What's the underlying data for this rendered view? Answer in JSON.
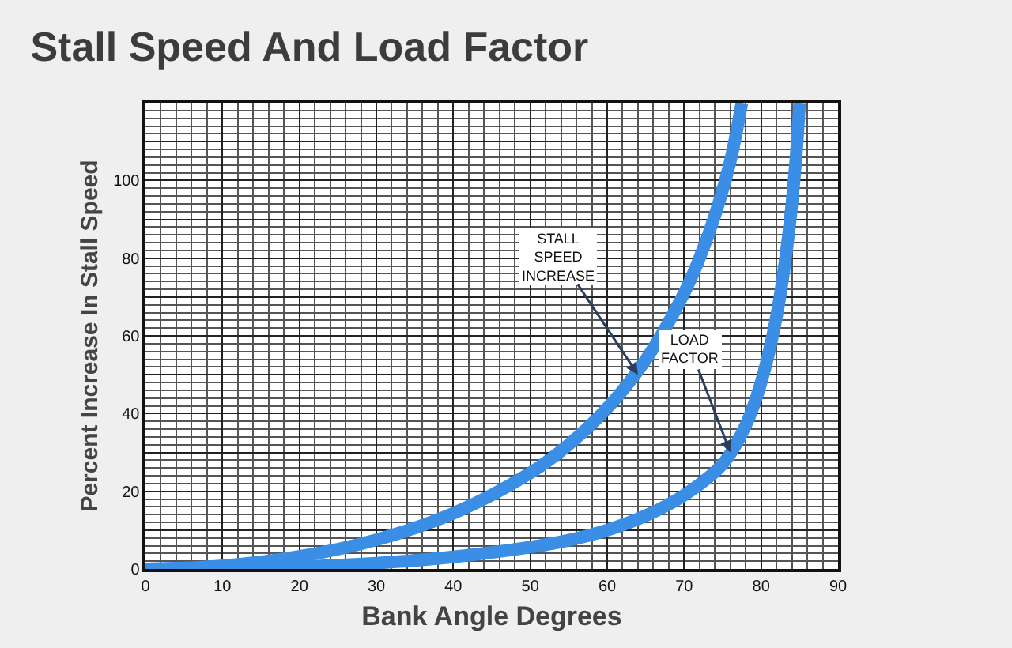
{
  "chart_data": {
    "type": "line",
    "title": "Stall Speed And Load Factor",
    "xlabel": "Bank Angle Degrees",
    "ylabel": "Percent Increase In Stall Speed",
    "series": [
      {
        "color": "#3a8ee6",
        "x": [
          0,
          10,
          20,
          30,
          40,
          50,
          55,
          60,
          65,
          70,
          72,
          74,
          76,
          77.5
        ],
        "values": [
          0,
          0.8,
          3.2,
          7.5,
          14.3,
          24.7,
          32,
          41.4,
          53.8,
          71,
          80,
          91,
          105,
          120
        ]
      },
      {
        "color": "#3a8ee6",
        "x": [
          0,
          20,
          30,
          40,
          50,
          55,
          60,
          65,
          70,
          75,
          78,
          80,
          82,
          83.5,
          84.5,
          85
        ],
        "values": [
          0,
          0.6,
          1.5,
          3.1,
          5.6,
          7.4,
          10,
          13.7,
          19,
          27,
          37,
          48,
          65,
          85,
          105,
          120
        ]
      }
    ],
    "annotations": [
      {
        "text": "STALL\nSPEED\nINCREASE",
        "x": 64,
        "y": 50
      },
      {
        "text": "LOAD\nFACTOR",
        "x": 76,
        "y": 30
      }
    ],
    "xlim": [
      0,
      90
    ],
    "xticks": [
      0,
      10,
      20,
      30,
      40,
      50,
      60,
      70,
      80,
      90
    ],
    "ylim": [
      0,
      120
    ],
    "yticks": [
      0,
      {
        "value": 10,
        "label": null
      },
      20,
      {
        "value": 30,
        "label": null
      },
      40,
      {
        "value": 50,
        "label": null
      },
      60,
      {
        "value": 70,
        "label": null
      },
      80,
      {
        "value": 90,
        "label": null
      },
      100,
      {
        "value": 110,
        "label": null
      }
    ],
    "grid": true,
    "marker": "none",
    "line_style": "solid"
  }
}
